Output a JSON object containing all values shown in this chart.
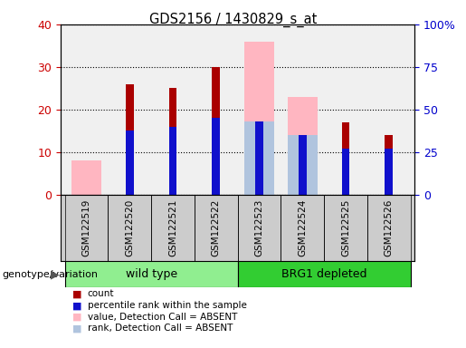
{
  "title": "GDS2156 / 1430829_s_at",
  "samples": [
    "GSM122519",
    "GSM122520",
    "GSM122521",
    "GSM122522",
    "GSM122523",
    "GSM122524",
    "GSM122525",
    "GSM122526"
  ],
  "red_bars": [
    0,
    26,
    25,
    30,
    0,
    0,
    17,
    14
  ],
  "blue_bars_pct": [
    0,
    38,
    40,
    45,
    43,
    35,
    27,
    27
  ],
  "pink_bars": [
    8,
    0,
    0,
    0,
    36,
    23,
    0,
    0
  ],
  "lightblue_bars_pct": [
    0,
    0,
    0,
    0,
    43,
    35,
    0,
    0
  ],
  "ylim_left": [
    0,
    40
  ],
  "ylim_right": [
    0,
    100
  ],
  "yticks_left": [
    0,
    10,
    20,
    30,
    40
  ],
  "yticks_right": [
    0,
    25,
    50,
    75,
    100
  ],
  "ytick_labels_right": [
    "0",
    "25",
    "50",
    "75",
    "100%"
  ],
  "red_color": "#AA0000",
  "blue_color": "#1010CC",
  "pink_color": "#FFB6C1",
  "lightblue_color": "#B0C4DE",
  "bg_color": "#FFFFFF",
  "plot_bg_color": "#F0F0F0",
  "left_ylabel_color": "#CC0000",
  "right_ylabel_color": "#0000CC",
  "wt_color": "#90EE90",
  "brg_color": "#32CD32",
  "sample_box_color": "#CCCCCC",
  "legend_items": [
    "count",
    "percentile rank within the sample",
    "value, Detection Call = ABSENT",
    "rank, Detection Call = ABSENT"
  ],
  "legend_colors": [
    "#AA0000",
    "#1010CC",
    "#FFB6C1",
    "#B0C4DE"
  ],
  "genotype_label": "genotype/variation"
}
